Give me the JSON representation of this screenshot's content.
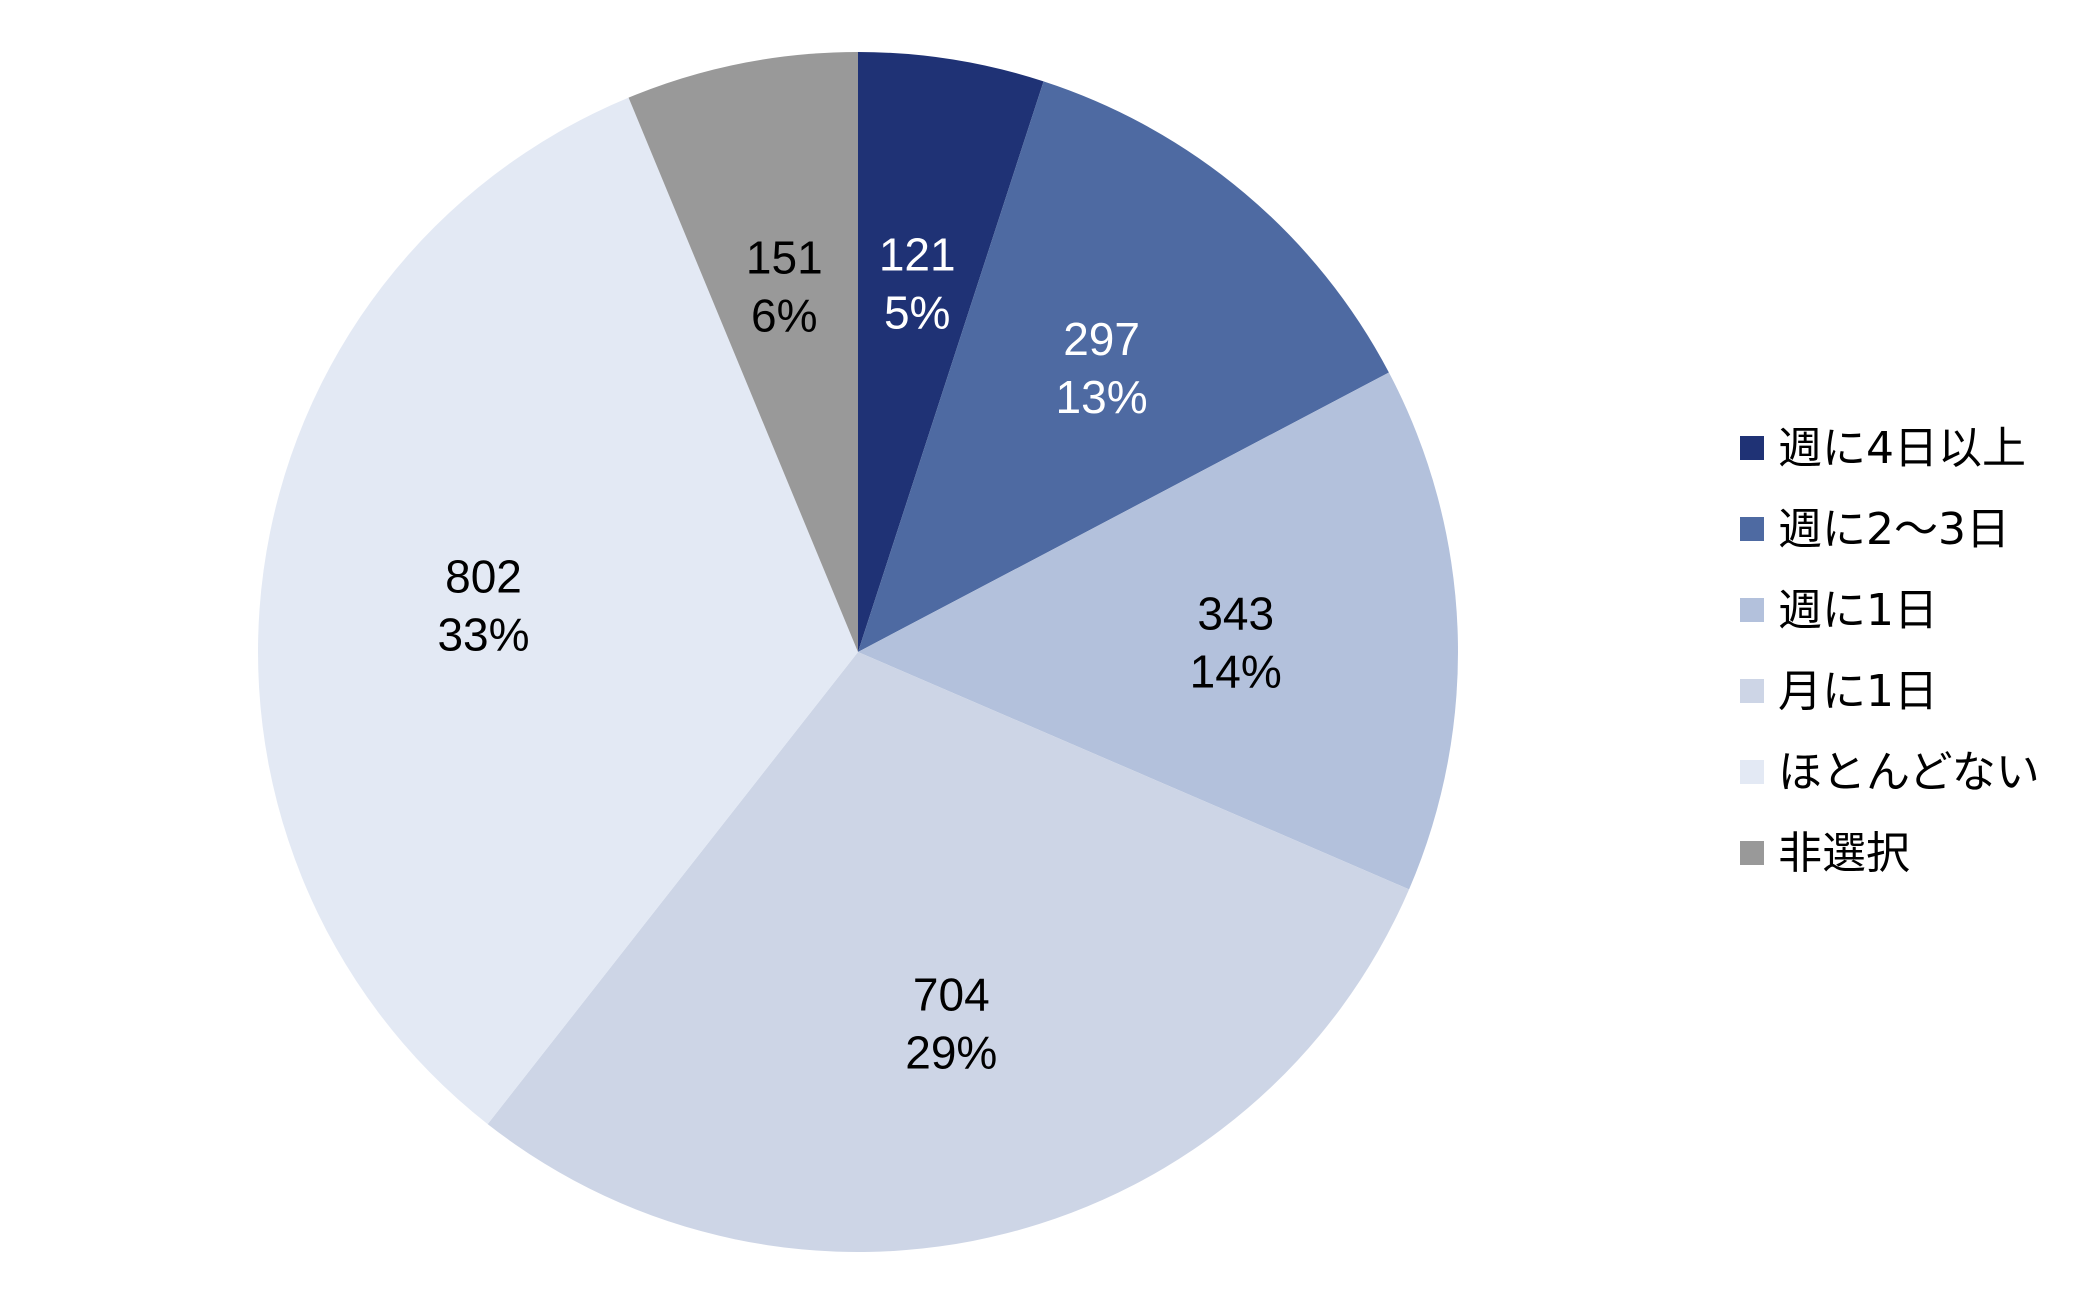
{
  "chart_data": {
    "type": "pie",
    "title": "",
    "start_angle_deg": 0,
    "direction": "clockwise",
    "legend_position": "right",
    "slices": [
      {
        "label": "週に4日以上",
        "value": 121,
        "percent": "5%",
        "color": "#1f3275",
        "text_color": "#ffffff"
      },
      {
        "label": "週に2～3日",
        "value": 297,
        "percent": "13%",
        "color": "#4e6aa2",
        "text_color": "#ffffff"
      },
      {
        "label": "週に1日",
        "value": 343,
        "percent": "14%",
        "color": "#b3c1dc",
        "text_color": "#000000"
      },
      {
        "label": "月に1日",
        "value": 704,
        "percent": "29%",
        "color": "#cdd5e6",
        "text_color": "#000000"
      },
      {
        "label": "ほとんどない",
        "value": 802,
        "percent": "33%",
        "color": "#e3e9f4",
        "text_color": "#000000"
      },
      {
        "label": "非選択",
        "value": 151,
        "percent": "6%",
        "color": "#999999",
        "text_color": "#000000"
      }
    ]
  }
}
